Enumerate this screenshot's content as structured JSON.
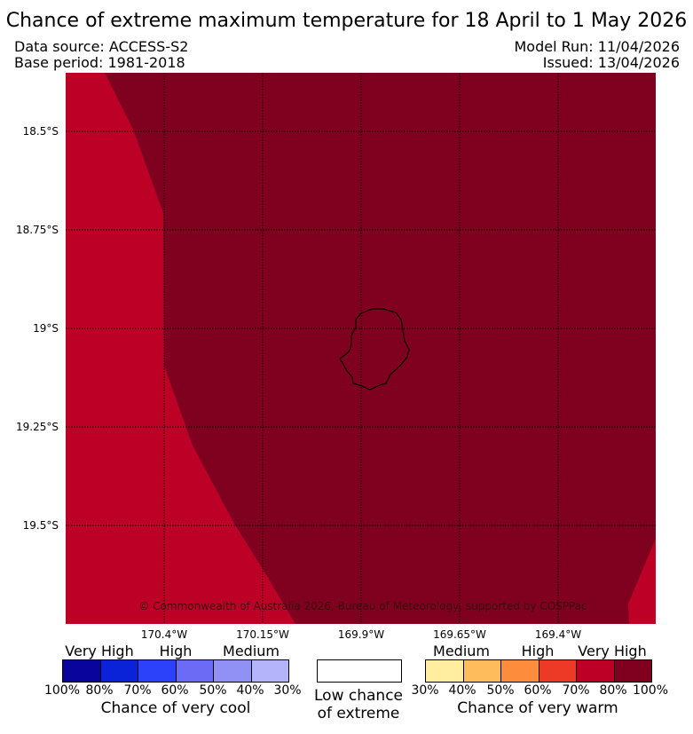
{
  "title": "Chance of extreme maximum temperature for 18 April to 1 May 2026",
  "meta": {
    "data_source": "Data source: ACCESS-S2",
    "base_period": "Base period: 1981-2018",
    "model_run": "Model Run: 11/04/2026",
    "issued": "Issued: 13/04/2026"
  },
  "map": {
    "lat_labels": [
      "18.5°S",
      "18.75°S",
      "19°S",
      "19.25°S",
      "19.5°S"
    ],
    "lon_labels": [
      "170.4°W",
      "170.15°W",
      "169.9°W",
      "169.65°W",
      "169.4°W"
    ],
    "copyright": "© Commonwealth of Australia 2026, Bureau of Meteorology, supported by COSPPac",
    "fill_colors": {
      "high": "#bd0026",
      "very_high": "#800020"
    }
  },
  "legend": {
    "cool": {
      "headings": [
        "Very High",
        "High",
        "Medium"
      ],
      "ticks": [
        "100%",
        "80%",
        "70%",
        "60%",
        "50%",
        "40%",
        "30%"
      ],
      "colors": [
        "#08049c",
        "#0a22d8",
        "#2c42fa",
        "#6b6bf6",
        "#9090f5",
        "#b4b4fb"
      ],
      "caption": "Chance of very cool"
    },
    "neutral": {
      "caption_line1": "Low chance",
      "caption_line2": "of extreme",
      "color": "#ffffff"
    },
    "warm": {
      "headings": [
        "Medium",
        "High",
        "Very High"
      ],
      "ticks": [
        "30%",
        "40%",
        "50%",
        "60%",
        "70%",
        "80%",
        "100%"
      ],
      "colors": [
        "#ffeda0",
        "#febc5c",
        "#fd8d3c",
        "#ed3a27",
        "#bd0026",
        "#800020"
      ],
      "caption": "Chance of very warm"
    }
  }
}
